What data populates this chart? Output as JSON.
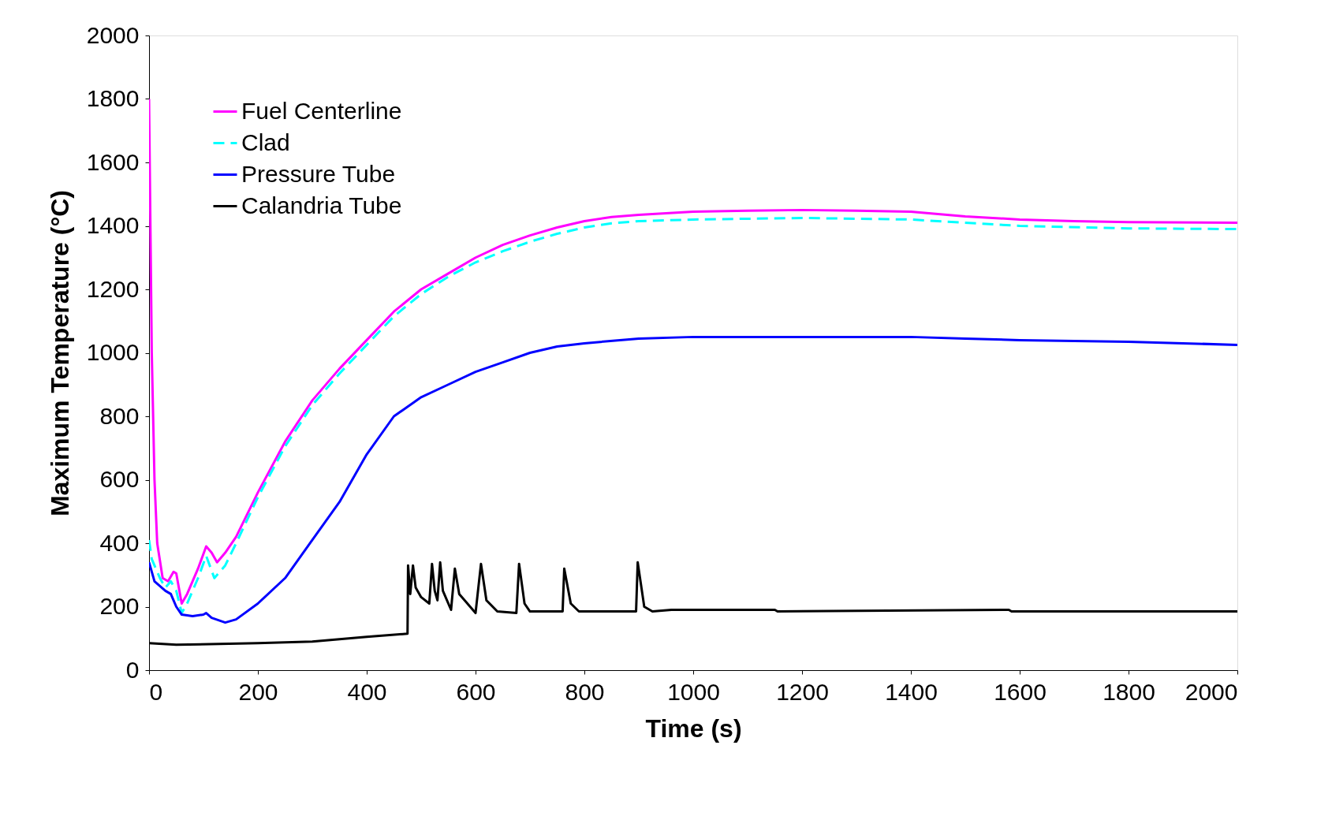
{
  "chart_data": {
    "type": "line",
    "xlabel": "Time (s)",
    "ylabel": "Maximum Temperature (°C)",
    "xlim": [
      0,
      2000
    ],
    "xticks": [
      0,
      200,
      400,
      600,
      800,
      1000,
      1200,
      1400,
      1600,
      1800,
      2000
    ],
    "ylim": [
      0,
      2000
    ],
    "yticks": [
      0,
      200,
      400,
      600,
      800,
      1000,
      1200,
      1400,
      1600,
      1800,
      2000
    ],
    "grid": false,
    "legend": "top left",
    "marker": "none",
    "series": [
      {
        "name": "Fuel Centerline",
        "color": "#ff00ff",
        "line_style": "solid",
        "x": [
          0,
          5,
          10,
          15,
          25,
          35,
          45,
          50,
          60,
          70,
          90,
          105,
          115,
          125,
          140,
          160,
          200,
          250,
          300,
          350,
          400,
          450,
          500,
          550,
          600,
          650,
          700,
          750,
          800,
          850,
          900,
          1000,
          1100,
          1200,
          1300,
          1400,
          1500,
          1600,
          1700,
          1800,
          2000
        ],
        "values": [
          1800,
          1000,
          600,
          400,
          290,
          280,
          310,
          305,
          210,
          240,
          320,
          390,
          370,
          340,
          370,
          420,
          560,
          720,
          850,
          950,
          1040,
          1130,
          1200,
          1250,
          1300,
          1340,
          1370,
          1395,
          1415,
          1428,
          1435,
          1445,
          1448,
          1450,
          1448,
          1445,
          1430,
          1420,
          1415,
          1412,
          1410
        ]
      },
      {
        "name": "Clad",
        "color": "#00ffff",
        "line_style": "dashed",
        "x": [
          0,
          5,
          20,
          30,
          40,
          50,
          60,
          70,
          90,
          105,
          120,
          140,
          160,
          200,
          250,
          300,
          350,
          400,
          450,
          500,
          550,
          600,
          650,
          700,
          750,
          800,
          850,
          900,
          1000,
          1200,
          1400,
          1600,
          1800,
          2000
        ],
        "values": [
          410,
          350,
          290,
          260,
          280,
          250,
          180,
          210,
          290,
          360,
          290,
          330,
          400,
          545,
          705,
          835,
          935,
          1025,
          1115,
          1185,
          1240,
          1285,
          1320,
          1350,
          1375,
          1395,
          1408,
          1415,
          1420,
          1425,
          1420,
          1400,
          1392,
          1390
        ]
      },
      {
        "name": "Pressure Tube",
        "color": "#0000ff",
        "line_style": "solid",
        "x": [
          0,
          10,
          30,
          40,
          50,
          60,
          80,
          100,
          105,
          115,
          140,
          160,
          200,
          250,
          300,
          350,
          400,
          450,
          500,
          550,
          600,
          650,
          700,
          750,
          800,
          900,
          1000,
          1400,
          1500,
          1600,
          1800,
          2000
        ],
        "values": [
          340,
          280,
          250,
          240,
          200,
          175,
          170,
          175,
          180,
          165,
          150,
          160,
          210,
          290,
          410,
          530,
          680,
          800,
          860,
          900,
          940,
          970,
          1000,
          1020,
          1030,
          1045,
          1050,
          1050,
          1045,
          1040,
          1035,
          1025
        ]
      },
      {
        "name": "Calandria Tube",
        "color": "#000000",
        "line_style": "solid",
        "x": [
          0,
          50,
          200,
          300,
          400,
          475,
          476,
          480,
          485,
          490,
          500,
          515,
          520,
          525,
          530,
          535,
          540,
          555,
          562,
          570,
          600,
          610,
          620,
          640,
          675,
          680,
          690,
          700,
          760,
          763,
          775,
          790,
          895,
          898,
          910,
          925,
          960,
          1150,
          1155,
          1580,
          1585,
          2000
        ],
        "values": [
          85,
          80,
          85,
          90,
          105,
          115,
          330,
          240,
          330,
          260,
          230,
          210,
          335,
          250,
          220,
          340,
          250,
          190,
          320,
          240,
          180,
          335,
          220,
          185,
          180,
          335,
          210,
          185,
          185,
          320,
          210,
          185,
          185,
          340,
          200,
          185,
          190,
          190,
          185,
          190,
          185,
          185
        ]
      }
    ]
  }
}
